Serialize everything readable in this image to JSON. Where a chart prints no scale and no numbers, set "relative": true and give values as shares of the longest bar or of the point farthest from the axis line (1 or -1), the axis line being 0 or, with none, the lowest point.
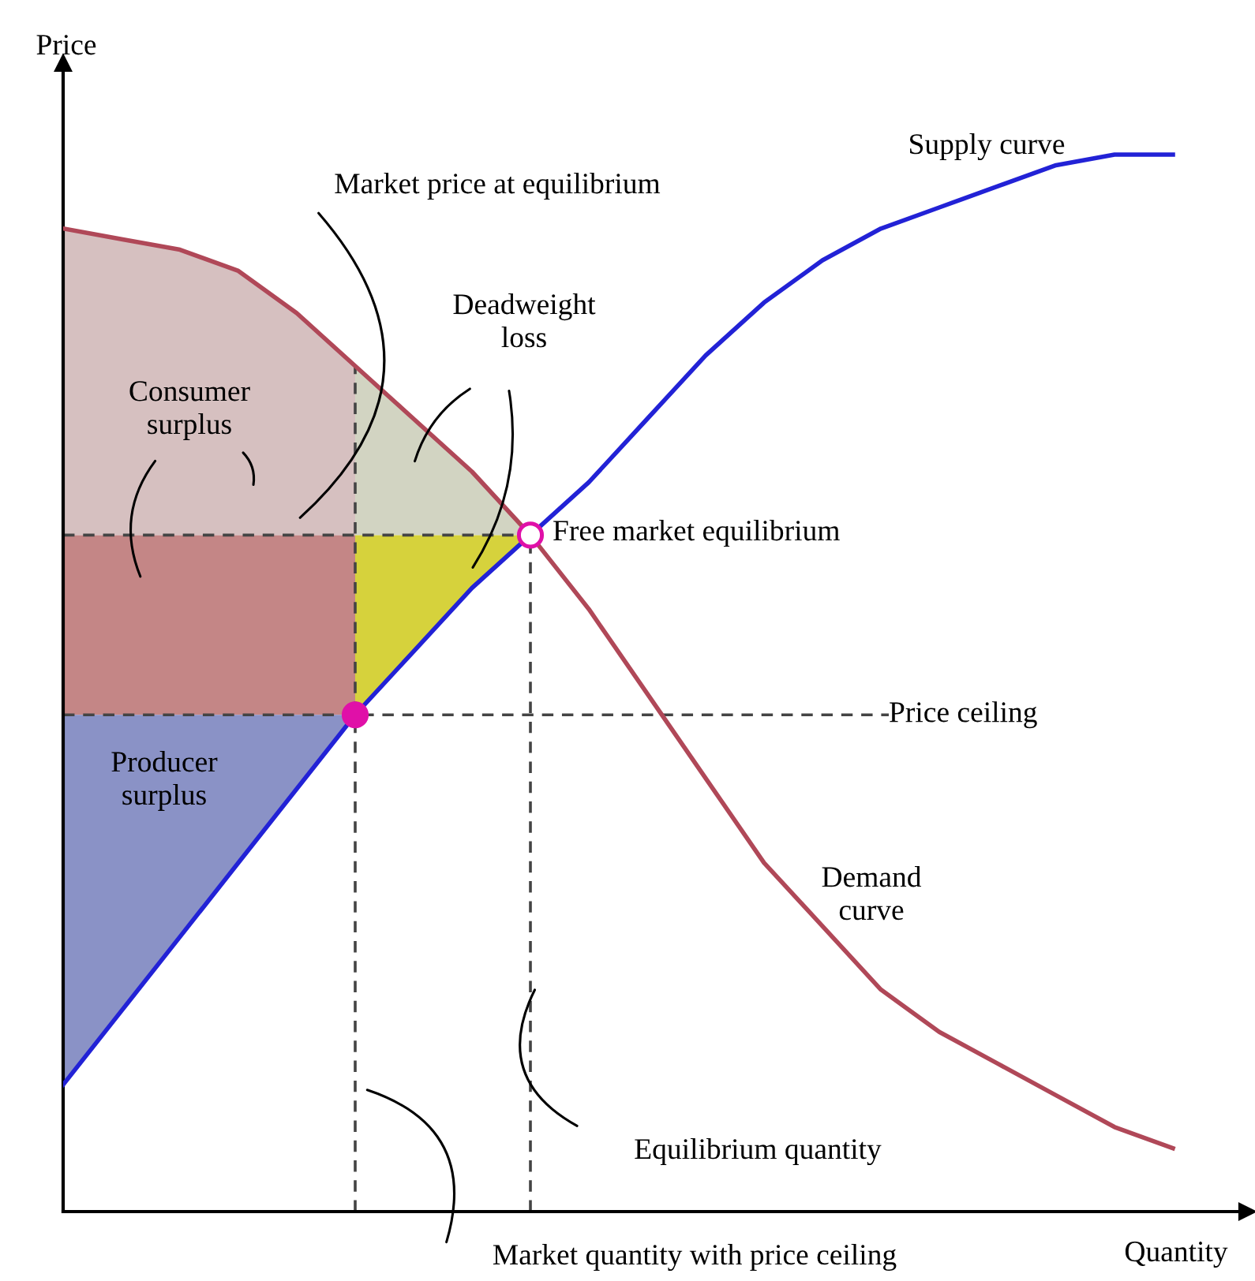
{
  "chart_data": {
    "type": "line",
    "relative": true,
    "xlabel": "Quantity",
    "ylabel": "Price",
    "categories": [
      null,
      null,
      null,
      null,
      null,
      null,
      null,
      null,
      null,
      null,
      null,
      null,
      null,
      null,
      null,
      null,
      null,
      null,
      null,
      null
    ],
    "series": [
      {
        "color": "#2222d6",
        "line_style": "solid",
        "values": [
          0.12,
          0.19,
          0.26,
          0.33,
          0.4,
          0.47,
          0.53,
          0.59,
          0.64,
          0.69,
          0.75,
          0.81,
          0.86,
          0.9,
          0.93,
          0.95,
          0.97,
          0.99,
          1.0,
          1.0
        ]
      },
      {
        "color": "#b04858",
        "line_style": "solid",
        "values": [
          0.93,
          0.92,
          0.91,
          0.89,
          0.85,
          0.8,
          0.75,
          0.7,
          0.64,
          0.57,
          0.49,
          0.41,
          0.33,
          0.27,
          0.21,
          0.17,
          0.14,
          0.11,
          0.08,
          0.06
        ]
      }
    ],
    "ref_lines": [
      {
        "axis": "y",
        "value": 0.64,
        "color": "#444444",
        "line_style": "dashed"
      },
      {
        "axis": "y",
        "value": 0.47,
        "label": "Price ceiling",
        "color": "#444444",
        "line_style": "dashed"
      }
    ],
    "annotations": [
      "Market price at equilibrium",
      "Deadweight\nloss",
      "Consumer\nsurplus",
      "Free market equilibrium",
      "Supply curve",
      "Demand\ncurve",
      "Producer\nsurplus",
      "Equilibrium quantity",
      "Market quantity with price ceiling"
    ]
  }
}
